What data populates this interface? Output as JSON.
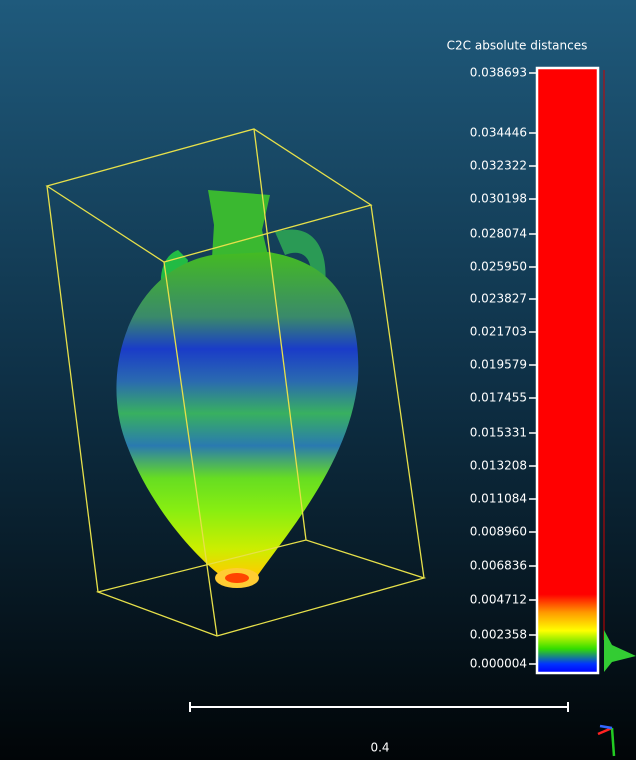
{
  "scale": {
    "title": "C2C absolute distances",
    "ticks": [
      "0.038693",
      "0.034446",
      "0.032322",
      "0.030198",
      "0.028074",
      "0.025950",
      "0.023827",
      "0.021703",
      "0.019579",
      "0.017455",
      "0.015331",
      "0.013208",
      "0.011084",
      "0.008960",
      "0.006836",
      "0.004712",
      "0.002358",
      "0.000004"
    ]
  },
  "scale_bar": {
    "label": "0.4"
  }
}
